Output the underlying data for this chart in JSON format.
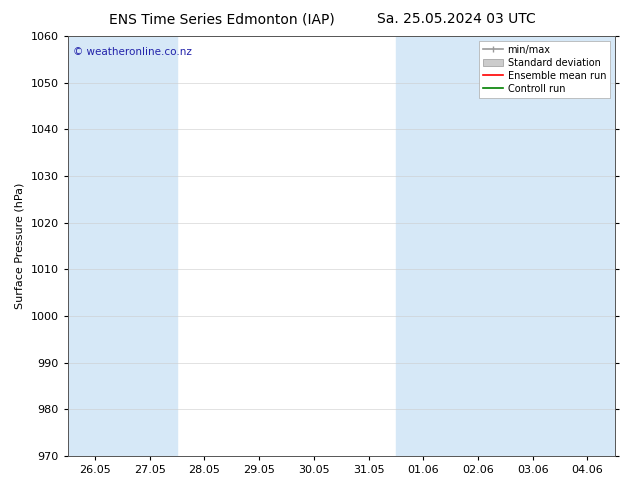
{
  "title_left": "ENS Time Series Edmonton (IAP)",
  "title_right": "Sa. 25.05.2024 03 UTC",
  "ylabel": "Surface Pressure (hPa)",
  "ylim": [
    970,
    1060
  ],
  "yticks": [
    970,
    980,
    990,
    1000,
    1010,
    1020,
    1030,
    1040,
    1050,
    1060
  ],
  "x_tick_labels": [
    "26.05",
    "27.05",
    "28.05",
    "29.05",
    "30.05",
    "31.05",
    "01.06",
    "02.06",
    "03.06",
    "04.06"
  ],
  "watermark": "© weatheronline.co.nz",
  "watermark_color": "#2222aa",
  "band_color": "#d6e8f7",
  "legend_entries": [
    "min/max",
    "Standard deviation",
    "Ensemble mean run",
    "Controll run"
  ],
  "legend_colors_line": [
    "#999999",
    "#bbbbbb",
    "#ff0000",
    "#008000"
  ],
  "background_color": "#ffffff",
  "title_fontsize": 10,
  "axis_fontsize": 8,
  "tick_fontsize": 8,
  "ylabel_fontsize": 8
}
